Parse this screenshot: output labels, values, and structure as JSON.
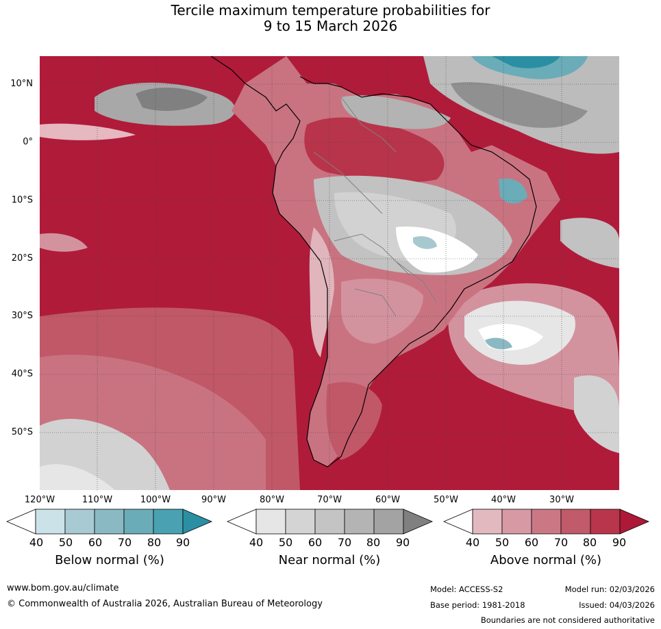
{
  "title": {
    "line1": "Tercile maximum temperature probabilities for",
    "line2": "9 to 15 March 2026"
  },
  "map": {
    "lat_labels": [
      "10°N",
      "0°",
      "10°S",
      "20°S",
      "30°S",
      "40°S",
      "50°S"
    ],
    "lon_labels": [
      "120°W",
      "110°W",
      "100°W",
      "90°W",
      "80°W",
      "70°W",
      "60°W",
      "50°W",
      "40°W",
      "30°W"
    ],
    "colors": {
      "above": [
        "#e0b5bc",
        "#d3939e",
        "#c97381",
        "#c05868",
        "#b8344a",
        "#b01b3a"
      ],
      "near": [
        "#ffffff",
        "#e6e6e6",
        "#d2d2d2",
        "#c2c2c2",
        "#b3b3b3",
        "#808080"
      ],
      "below": [
        "#c8e0e6",
        "#a7c8cf",
        "#8ab9c3",
        "#6bacb9",
        "#4aa1b1",
        "#2b8fa3"
      ]
    }
  },
  "legends": [
    {
      "title": "Below normal (%)",
      "ticks": [
        "40",
        "50",
        "60",
        "70",
        "80",
        "90"
      ],
      "colors": [
        "#ffffff",
        "#cbe2e8",
        "#a8cad2",
        "#8ab9c3",
        "#6bacb9",
        "#4aa1b1",
        "#2b8fa3"
      ]
    },
    {
      "title": "Near normal (%)",
      "ticks": [
        "40",
        "50",
        "60",
        "70",
        "80",
        "90"
      ],
      "colors": [
        "#ffffff",
        "#e6e6e6",
        "#d4d4d4",
        "#c4c4c4",
        "#b4b4b4",
        "#a3a3a3",
        "#808080"
      ]
    },
    {
      "title": "Above normal (%)",
      "ticks": [
        "40",
        "50",
        "60",
        "70",
        "80",
        "90"
      ],
      "colors": [
        "#ffffff",
        "#e3b9c0",
        "#d79aa4",
        "#cb7885",
        "#c15a6a",
        "#b8354c",
        "#ad1a38"
      ]
    }
  ],
  "footer": {
    "website": "www.bom.gov.au/climate",
    "copyright": "© Commonwealth of Australia 2026, Australian Bureau of Meteorology",
    "model": "Model: ACCESS-S2",
    "base_period": "Base period: 1981-2018",
    "model_run": "Model run: 02/03/2026",
    "issued": "Issued: 04/03/2026",
    "disclaimer": "Boundaries are not considered authoritative"
  }
}
